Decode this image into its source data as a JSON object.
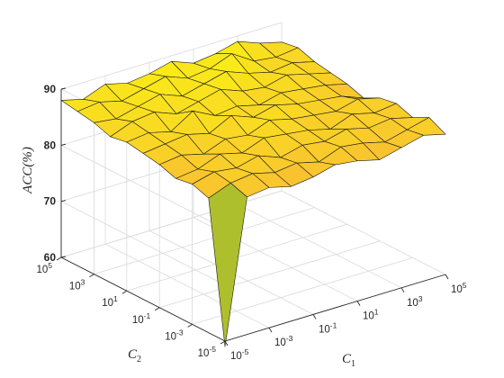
{
  "chart_data": {
    "type": "surface",
    "zlabel": "ACC(%)",
    "xlabel": {
      "base": "C",
      "subscript": "1"
    },
    "ylabel": {
      "base": "C",
      "subscript": "2"
    },
    "zlim": [
      60,
      90
    ],
    "z_ticks": [
      "60",
      "70",
      "80",
      "90"
    ],
    "x_exponents": [
      -5,
      -4,
      -3,
      -2,
      -1,
      0,
      1,
      2,
      3,
      4,
      5
    ],
    "y_exponents": [
      -5,
      -4,
      -3,
      -2,
      -1,
      0,
      1,
      2,
      3,
      4,
      5
    ],
    "x_tick_labels": [
      {
        "base": "10",
        "exp": "-5"
      },
      {
        "base": "10",
        "exp": "-3"
      },
      {
        "base": "10",
        "exp": "-1"
      },
      {
        "base": "10",
        "exp": "1"
      },
      {
        "base": "10",
        "exp": "3"
      },
      {
        "base": "10",
        "exp": "5"
      }
    ],
    "y_tick_labels": [
      {
        "base": "10",
        "exp": "-5"
      },
      {
        "base": "10",
        "exp": "-3"
      },
      {
        "base": "10",
        "exp": "-1"
      },
      {
        "base": "10",
        "exp": "1"
      },
      {
        "base": "10",
        "exp": "3"
      },
      {
        "base": "10",
        "exp": "5"
      }
    ],
    "grid": true,
    "colormap": [
      "#3e26a8",
      "#2c91e9",
      "#3abd8c",
      "#a5c02c",
      "#f9b936",
      "#f9fb0e"
    ],
    "z": [
      [
        59.0,
        84.5,
        85.0,
        84.0,
        84.5,
        85.5,
        85.0,
        84.0,
        85.0,
        86.0,
        85.0
      ],
      [
        84.0,
        85.5,
        86.0,
        85.0,
        85.5,
        84.5,
        86.0,
        85.5,
        84.5,
        85.5,
        86.5
      ],
      [
        85.0,
        86.0,
        85.5,
        86.5,
        85.0,
        86.0,
        85.5,
        86.5,
        85.5,
        86.0,
        85.0
      ],
      [
        84.5,
        85.0,
        86.5,
        85.5,
        87.0,
        86.5,
        86.0,
        85.0,
        86.5,
        85.5,
        86.0
      ],
      [
        85.5,
        86.0,
        85.0,
        86.5,
        86.0,
        87.5,
        86.5,
        86.0,
        85.5,
        86.5,
        85.5
      ],
      [
        86.0,
        86.5,
        87.0,
        86.0,
        88.0,
        86.5,
        87.5,
        86.5,
        86.0,
        85.5,
        84.0
      ],
      [
        86.5,
        87.0,
        86.0,
        88.5,
        86.5,
        87.0,
        86.0,
        87.0,
        86.5,
        86.0,
        85.0
      ],
      [
        86.0,
        87.5,
        88.0,
        86.5,
        87.5,
        88.5,
        87.0,
        86.5,
        87.5,
        86.5,
        85.5
      ],
      [
        87.0,
        86.5,
        87.5,
        88.5,
        87.0,
        88.0,
        89.0,
        87.5,
        86.5,
        87.0,
        86.0
      ],
      [
        87.5,
        88.0,
        87.0,
        88.0,
        89.0,
        87.5,
        88.0,
        89.5,
        87.0,
        86.5,
        87.0
      ],
      [
        88.0,
        87.0,
        88.5,
        87.5,
        88.0,
        89.0,
        87.5,
        88.0,
        89.0,
        87.5,
        86.5
      ]
    ]
  }
}
